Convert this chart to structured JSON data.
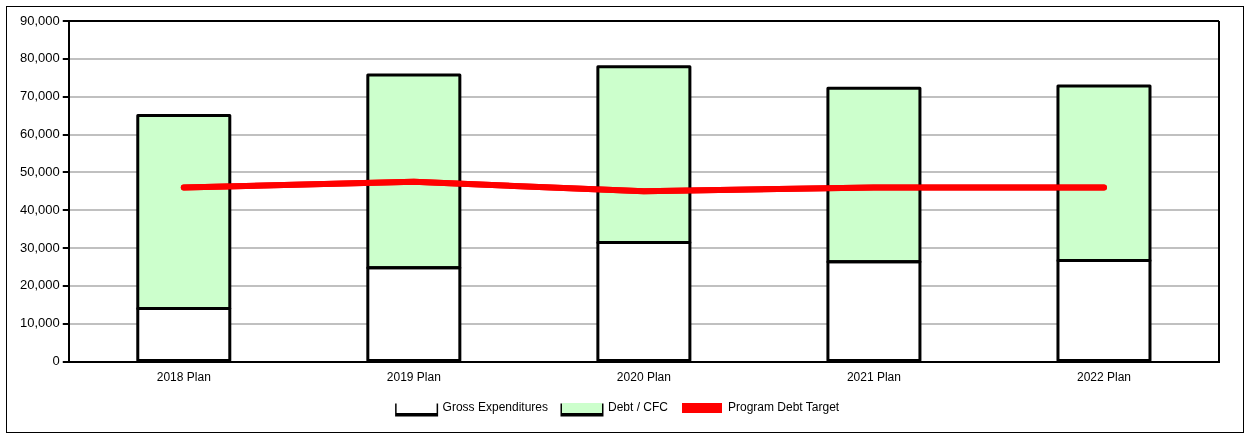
{
  "chart_data": {
    "type": "bar",
    "stacked": true,
    "categories": [
      "2018 Plan",
      "2019 Plan",
      "2020 Plan",
      "2021 Plan",
      "2022 Plan"
    ],
    "series": [
      {
        "name": "Gross Expenditures",
        "color": "#ffffff",
        "values": [
          14000,
          24800,
          31500,
          26400,
          26700
        ]
      },
      {
        "name": "Debt / CFC",
        "color": "#ccffcc",
        "values": [
          51000,
          50900,
          46400,
          45800,
          46100
        ]
      },
      {
        "name": "Program Debt Target",
        "type": "line",
        "color": "#ff0000",
        "values": [
          46000,
          47500,
          45000,
          46000,
          46000
        ]
      }
    ],
    "ylim": [
      0,
      90000
    ],
    "yticks": [
      {
        "value": 0,
        "label": "0"
      },
      {
        "value": 10000,
        "label": "10,000"
      },
      {
        "value": 20000,
        "label": "20,000"
      },
      {
        "value": 30000,
        "label": "30,000"
      },
      {
        "value": 40000,
        "label": "40,000"
      },
      {
        "value": 50000,
        "label": "50,000"
      },
      {
        "value": 60000,
        "label": "60,000"
      },
      {
        "value": 70000,
        "label": "70,000"
      },
      {
        "value": 80000,
        "label": "80,000"
      },
      {
        "value": 90000,
        "label": "90,000"
      }
    ],
    "grid": "y",
    "legend": "bottom",
    "marker": "none",
    "line_style": "solid"
  }
}
